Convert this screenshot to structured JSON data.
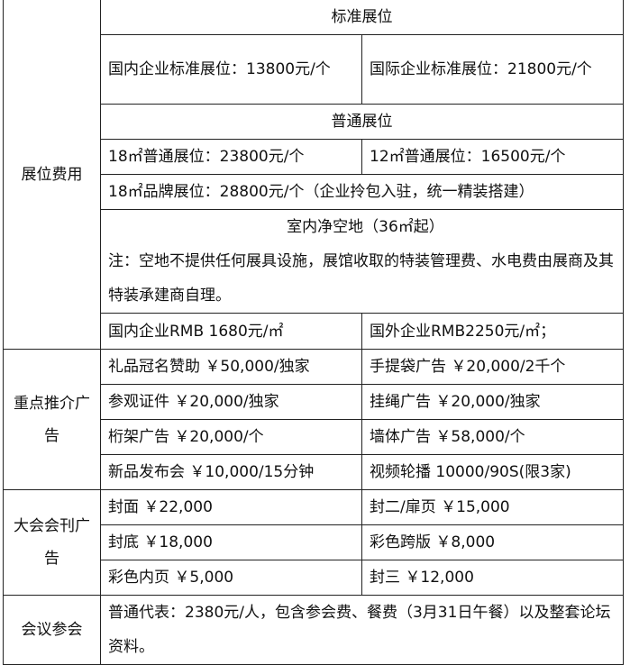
{
  "booth": {
    "label": "展位费用",
    "standard_title": "标准展位",
    "standard_domestic": "国内企业标准展位：13800元/个",
    "standard_international": "国际企业标准展位：21800元/个",
    "regular_title": "普通展位",
    "regular_18": "18㎡普通展位：23800元/个",
    "regular_12": "12㎡普通展位：16500元/个",
    "brand_18": "18㎡品牌展位：28800元/个（企业拎包入驻，统一精装搭建）",
    "space_title": "室内净空地（36㎡起）",
    "space_note": "注：空地不提供任何展具设施，展馆收取的特装管理费、水电费由展商及其特装承建商自理。",
    "space_domestic": "国内企业RMB 1680元/㎡",
    "space_foreign": "国外企业RMB2250元/㎡；"
  },
  "ads": {
    "label": "重点推介广告",
    "rows": [
      [
        "礼品冠名赞助 ￥50,000/独家",
        "手提袋广告 ￥20,000/2千个"
      ],
      [
        "参观证件 ￥20,000/独家",
        "挂绳广告 ￥20,000/独家"
      ],
      [
        "桁架广告 ￥20,000/个",
        "墙体广告 ￥58,000/个"
      ],
      [
        "新品发布会 ￥10,000/15分钟",
        "视频轮播 10000/90S(限3家)"
      ]
    ]
  },
  "journal": {
    "label": "大会会刊广告",
    "rows": [
      [
        "封面 ￥22,000",
        "封二/扉页 ￥15,000"
      ],
      [
        "封底 ￥18,000",
        "彩色跨版 ￥8,000"
      ],
      [
        "彩色内页 ￥5,000",
        "封三 ￥12,000"
      ]
    ]
  },
  "conference": {
    "label": "会议参会",
    "text": "普通代表：2380元/人，包含参会费、餐费（3月31日午餐）以及整套论坛资料。"
  }
}
